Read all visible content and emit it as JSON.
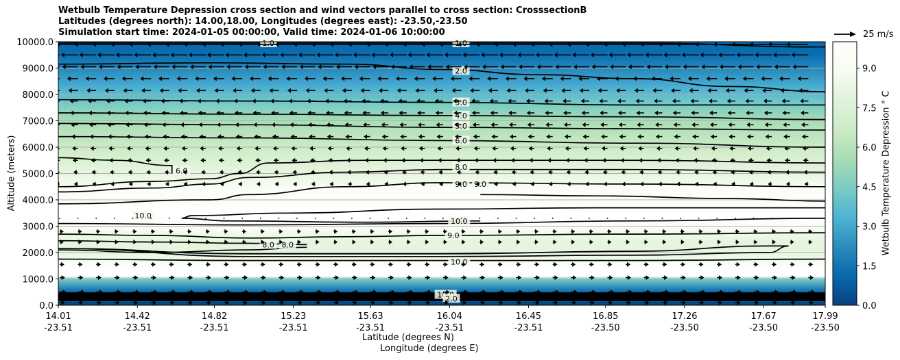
{
  "chart_data": {
    "type": "contour",
    "title_lines": [
      "Wetbulb Temperature Depression cross section and wind vectors parallel to cross section: CrosssectionB",
      "Latitudes (degrees north): 14.00,18.00, Longitudes (degrees east): -23.50,-23.50",
      "Simulation start time: 2024-01-05 00:00:00, Valid time: 2024-01-06 10:00:00"
    ],
    "ylabel": "Altitude (meters)",
    "xlabel_1": "Latitude (degrees N)",
    "xlabel_2": "Longitude (degrees E)",
    "ylim": [
      0,
      10000
    ],
    "xlim": [
      14.01,
      17.99
    ],
    "y_ticks": [
      "0.0",
      "1000.0",
      "2000.0",
      "3000.0",
      "4000.0",
      "5000.0",
      "6000.0",
      "7000.0",
      "8000.0",
      "9000.0",
      "10000.0"
    ],
    "x_ticks": [
      {
        "lat": "14.01",
        "lon": "-23.51"
      },
      {
        "lat": "14.42",
        "lon": "-23.51"
      },
      {
        "lat": "14.82",
        "lon": "-23.51"
      },
      {
        "lat": "15.23",
        "lon": "-23.51"
      },
      {
        "lat": "15.63",
        "lon": "-23.51"
      },
      {
        "lat": "16.04",
        "lon": "-23.51"
      },
      {
        "lat": "16.45",
        "lon": "-23.51"
      },
      {
        "lat": "16.85",
        "lon": "-23.50"
      },
      {
        "lat": "17.26",
        "lon": "-23.50"
      },
      {
        "lat": "17.67",
        "lon": "-23.50"
      },
      {
        "lat": "17.99",
        "lon": "-23.50"
      }
    ],
    "colorbar": {
      "label": "Wetbulb Temperature Depression ° C",
      "range": [
        0,
        10
      ],
      "ticks": [
        "0.0",
        "1.5",
        "3.0",
        "4.5",
        "6.0",
        "7.5",
        "9.0"
      ],
      "colors": [
        "#084081",
        "#0868ac",
        "#2b8cbe",
        "#4eb3d3",
        "#7bccc4",
        "#a8ddb5",
        "#ccebc5",
        "#e0f3db",
        "#f7fcf0",
        "#ffffff"
      ]
    },
    "quiver_key_label": "25 m/s",
    "contour_labels": [
      {
        "text": "1.0",
        "lat": 16.1,
        "alt": 9950
      },
      {
        "text": "1.0",
        "lat": 15.1,
        "alt": 9950
      },
      {
        "text": "2.0",
        "lat": 16.1,
        "alt": 8900
      },
      {
        "text": "3.0",
        "lat": 16.1,
        "alt": 7700
      },
      {
        "text": "4.0",
        "lat": 16.1,
        "alt": 7200
      },
      {
        "text": "5.0",
        "lat": 16.1,
        "alt": 6800
      },
      {
        "text": "6.0",
        "lat": 16.1,
        "alt": 6250
      },
      {
        "text": "8.0",
        "lat": 16.1,
        "alt": 5250
      },
      {
        "text": "9.0",
        "lat": 16.1,
        "alt": 4600
      },
      {
        "text": "9.0",
        "lat": 16.2,
        "alt": 4600
      },
      {
        "text": "6.0",
        "lat": 14.65,
        "alt": 5100
      },
      {
        "text": "10.0",
        "lat": 14.45,
        "alt": 3400
      },
      {
        "text": "10.0",
        "lat": 16.09,
        "alt": 3200
      },
      {
        "text": "9.0",
        "lat": 16.06,
        "alt": 2650
      },
      {
        "text": "8.0",
        "lat": 15.1,
        "alt": 2300
      },
      {
        "text": "8.0",
        "lat": 15.2,
        "alt": 2300
      },
      {
        "text": "10.0",
        "lat": 16.09,
        "alt": 1650
      },
      {
        "text": "10.0",
        "lat": 16.02,
        "alt": 400
      },
      {
        "text": "2.0",
        "lat": 16.05,
        "alt": 250
      }
    ],
    "series": [
      {
        "name": "1.0",
        "lat": [
          14.01,
          15.0,
          16.0,
          17.0,
          17.99
        ],
        "alt": [
          9950,
          9950,
          9950,
          9950,
          9800
        ]
      },
      {
        "name": "2.0",
        "lat": [
          14.01,
          14.8,
          15.5,
          16.0,
          16.5,
          17.0,
          17.5,
          17.99
        ],
        "alt": [
          9150,
          9200,
          9150,
          8950,
          8750,
          8600,
          8300,
          8100
        ]
      },
      {
        "name": "3.0",
        "lat": [
          14.01,
          15.0,
          16.0,
          17.0,
          17.99
        ],
        "alt": [
          7800,
          7750,
          7700,
          7600,
          7600
        ]
      },
      {
        "name": "4.0",
        "lat": [
          14.01,
          15.0,
          16.0,
          17.0,
          17.99
        ],
        "alt": [
          7300,
          7250,
          7200,
          7150,
          7050
        ]
      },
      {
        "name": "5.0",
        "lat": [
          14.01,
          15.0,
          16.0,
          17.0,
          17.99
        ],
        "alt": [
          6900,
          6850,
          6750,
          6700,
          6650
        ]
      },
      {
        "name": "6.0",
        "lat": [
          14.01,
          15.0,
          16.0,
          17.0,
          17.99
        ],
        "alt": [
          6400,
          6350,
          6250,
          6150,
          6000
        ]
      },
      {
        "name": "6.0",
        "lat": [
          14.01,
          14.3,
          14.6,
          14.6
        ],
        "alt": [
          5600,
          5500,
          5300,
          5000
        ]
      },
      {
        "name": "6.0",
        "lat": [
          14.01,
          14.5,
          14.8,
          14.95,
          15.1,
          15.6,
          16.0,
          17.0,
          17.99
        ],
        "alt": [
          4500,
          4700,
          4800,
          5000,
          5400,
          5500,
          5500,
          5500,
          5400
        ]
      },
      {
        "name": "8.0",
        "lat": [
          14.01,
          14.5,
          14.8,
          15.0,
          15.5,
          16.0,
          17.0,
          17.99
        ],
        "alt": [
          4300,
          4450,
          4600,
          4850,
          5050,
          5150,
          5150,
          5050
        ]
      },
      {
        "name": "9.0",
        "lat": [
          14.01,
          14.8,
          15.0,
          15.5,
          16.0,
          17.0,
          17.99
        ],
        "alt": [
          3850,
          4000,
          4200,
          4500,
          4650,
          4600,
          4500
        ]
      },
      {
        "name": "10.0",
        "lat": [
          16.2,
          16.8,
          17.5,
          17.99
        ],
        "alt": [
          4200,
          4150,
          4050,
          3950
        ]
      },
      {
        "name": "10.0",
        "lat": [
          17.99,
          17.5,
          16.8,
          16.0,
          15.2,
          14.7,
          14.65,
          14.9,
          15.6,
          16.2
        ],
        "alt": [
          3700,
          3700,
          3700,
          3650,
          3500,
          3400,
          3300,
          3200,
          3150,
          3200
        ]
      },
      {
        "name": "10.0",
        "lat": [
          14.01,
          15.0,
          16.0,
          17.0,
          17.99
        ],
        "alt": [
          3100,
          3050,
          3100,
          3200,
          3300
        ]
      },
      {
        "name": "9.0",
        "lat": [
          14.01,
          14.5,
          15.0,
          15.5,
          16.0,
          17.0,
          17.99
        ],
        "alt": [
          2700,
          2650,
          2550,
          2600,
          2650,
          2700,
          2750
        ]
      },
      {
        "name": "8.0",
        "lat": [
          14.01,
          14.5,
          15.0,
          15.3
        ],
        "alt": [
          2450,
          2400,
          2350,
          2300
        ]
      },
      {
        "name": "8.0",
        "lat": [
          14.01,
          14.5,
          15.0,
          15.3
        ],
        "alt": [
          2100,
          2000,
          2100,
          2200
        ]
      },
      {
        "name": "9.0",
        "lat": [
          14.01,
          15.0,
          16.0,
          17.0,
          17.7,
          17.8,
          17.7,
          17.0,
          16.0,
          15.0,
          14.01
        ],
        "alt": [
          2150,
          1850,
          1850,
          1900,
          2000,
          2250,
          2250,
          2050,
          1950,
          1950,
          2150
        ]
      },
      {
        "name": "10.0",
        "lat": [
          14.01,
          15.0,
          16.0,
          17.0,
          17.99
        ],
        "alt": [
          1750,
          1700,
          1700,
          1700,
          1750
        ]
      },
      {
        "name": "10.0",
        "lat": [
          14.01,
          15.0,
          16.0,
          17.0,
          17.99
        ],
        "alt": [
          400,
          400,
          400,
          400,
          400
        ]
      },
      {
        "name": "2.0",
        "lat": [
          14.01,
          15.0,
          16.0,
          17.0,
          17.99
        ],
        "alt": [
          250,
          250,
          250,
          250,
          250
        ]
      }
    ],
    "wind_rows": [
      {
        "alt": 9900,
        "u": -30
      },
      {
        "alt": 9500,
        "u": -22
      },
      {
        "alt": 9050,
        "u": -20
      },
      {
        "alt": 8600,
        "u": -12
      },
      {
        "alt": 8150,
        "u": -10
      },
      {
        "alt": 7750,
        "u": -8
      },
      {
        "alt": 7300,
        "u": -7
      },
      {
        "alt": 6850,
        "u": -6
      },
      {
        "alt": 6400,
        "u": -5
      },
      {
        "alt": 5950,
        "u": -4
      },
      {
        "alt": 5500,
        "u": -3
      },
      {
        "alt": 5050,
        "u": -2
      },
      {
        "alt": 4600,
        "u": -1
      },
      {
        "alt": 3300,
        "u": 0.5
      },
      {
        "alt": 2800,
        "u": 1
      },
      {
        "alt": 2400,
        "u": 1
      },
      {
        "alt": 1550,
        "u": 2
      },
      {
        "alt": 1050,
        "u": 3
      },
      {
        "alt": 500,
        "u": 5
      },
      {
        "alt": 100,
        "u": 3
      }
    ]
  }
}
